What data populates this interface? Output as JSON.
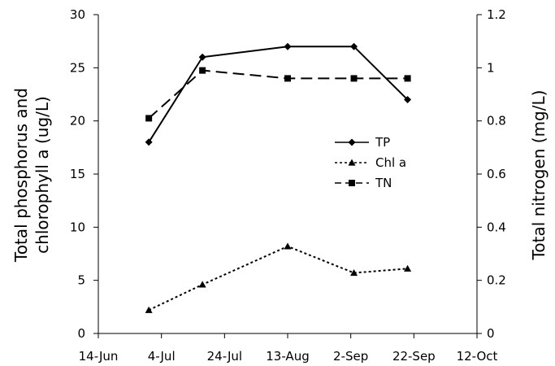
{
  "chart_data": {
    "type": "line",
    "x_axis": {
      "ticks": [
        "14-Jun",
        "4-Jul",
        "24-Jul",
        "13-Aug",
        "2-Sep",
        "22-Sep",
        "12-Oct"
      ]
    },
    "y_left": {
      "label_line1": "Total phosphorus and",
      "label_line2": "chlorophyll a (ug/L)",
      "ylim": [
        0,
        30
      ],
      "ticks": [
        "0",
        "5",
        "10",
        "15",
        "20",
        "25",
        "30"
      ]
    },
    "y_right": {
      "label": "Total nitrogen (mg/L)",
      "ylim": [
        0,
        1.2
      ],
      "ticks": [
        "0",
        "0.2",
        "0.4",
        "0.6",
        "0.8",
        "1",
        "1.2"
      ]
    },
    "series": [
      {
        "name": "TP",
        "axis": "left",
        "line": "solid",
        "marker": "diamond",
        "x": [
          "2024-06-30",
          "2024-07-17",
          "2024-08-13",
          "2024-09-03",
          "2024-09-20"
        ],
        "y": [
          18,
          26,
          27,
          27,
          22
        ]
      },
      {
        "name": "Chl a",
        "axis": "left",
        "line": "dotted",
        "marker": "triangle",
        "x": [
          "2024-06-30",
          "2024-07-17",
          "2024-08-13",
          "2024-09-03",
          "2024-09-20"
        ],
        "y": [
          2.2,
          4.6,
          8.2,
          5.7,
          6.1
        ]
      },
      {
        "name": "TN",
        "axis": "right",
        "line": "dashed",
        "marker": "square",
        "x": [
          "2024-06-30",
          "2024-07-17",
          "2024-08-13",
          "2024-09-03",
          "2024-09-20"
        ],
        "y": [
          0.81,
          0.99,
          0.96,
          0.96,
          0.96
        ]
      }
    ],
    "legend_position": "center-right",
    "grid": false
  }
}
